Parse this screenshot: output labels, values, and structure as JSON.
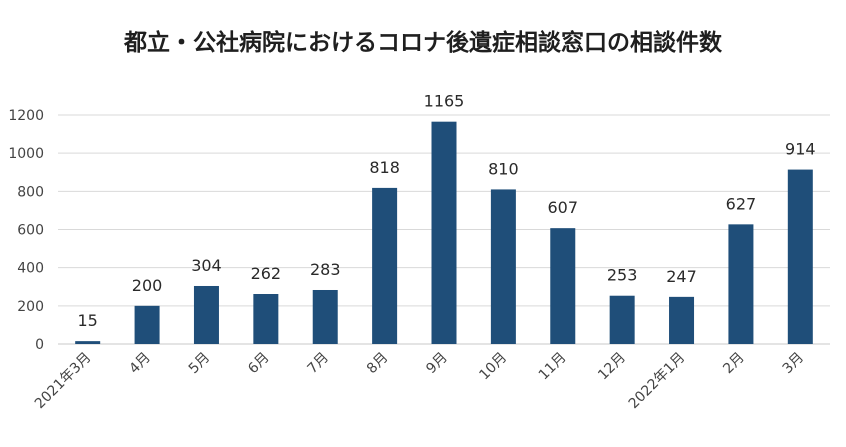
{
  "chart_data": {
    "type": "bar",
    "title": "都立・公社病院におけるコロナ後遺症相談窓口の相談件数",
    "categories": [
      "2021年3月",
      "4月",
      "5月",
      "6月",
      "7月",
      "8月",
      "9月",
      "10月",
      "11月",
      "12月",
      "2022年1月",
      "2月",
      "3月"
    ],
    "values": [
      15,
      200,
      304,
      262,
      283,
      818,
      1165,
      810,
      607,
      253,
      247,
      627,
      914
    ],
    "yticks": [
      0,
      200,
      400,
      600,
      800,
      1000,
      1200
    ],
    "ylim": [
      0,
      1200
    ],
    "grid": true,
    "bar_color": "#1f4e79"
  }
}
